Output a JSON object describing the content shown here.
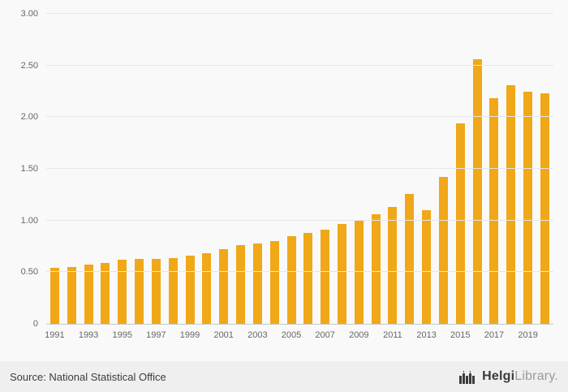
{
  "chart_data": {
    "type": "bar",
    "title": "",
    "xlabel": "",
    "ylabel": "",
    "categories": [
      1991,
      1992,
      1993,
      1994,
      1995,
      1996,
      1997,
      1998,
      1999,
      2000,
      2001,
      2002,
      2003,
      2004,
      2005,
      2006,
      2007,
      2008,
      2009,
      2010,
      2011,
      2012,
      2013,
      2014,
      2015,
      2016,
      2017,
      2018,
      2019,
      2020
    ],
    "values": [
      0.54,
      0.55,
      0.57,
      0.59,
      0.62,
      0.63,
      0.63,
      0.64,
      0.66,
      0.68,
      0.72,
      0.76,
      0.78,
      0.8,
      0.85,
      0.88,
      0.91,
      0.97,
      1.0,
      1.06,
      1.13,
      1.26,
      1.1,
      1.42,
      1.94,
      2.56,
      2.18,
      2.31,
      2.25,
      2.23
    ],
    "ylim": [
      0,
      3.0
    ],
    "yticks": [
      0,
      0.5,
      1.0,
      1.5,
      2.0,
      2.5,
      3.0
    ],
    "ytick_labels": [
      "0",
      "0.50",
      "1.00",
      "1.50",
      "2.00",
      "2.50",
      "3.00"
    ],
    "xtick_labels": [
      "1991",
      "1993",
      "1995",
      "1997",
      "1999",
      "2001",
      "2003",
      "2005",
      "2007",
      "2009",
      "2011",
      "2013",
      "2015",
      "2017",
      "2019"
    ],
    "grid": true,
    "legend": "none",
    "bar_color": "#F0A818"
  },
  "footer": {
    "source_label": "Source: National Statistical Office",
    "logo": {
      "brand_primary": "Helgi",
      "brand_secondary": "Library."
    }
  },
  "colors": {
    "background": "#f9f9f9",
    "footer_background": "#efefef",
    "gridline": "#e6e6e6",
    "axis_line": "#c8c8c8",
    "tick_text": "#666666",
    "bar": "#F0A818",
    "logo_dark": "#3b3b3b",
    "logo_gray": "#9a9a9a"
  }
}
